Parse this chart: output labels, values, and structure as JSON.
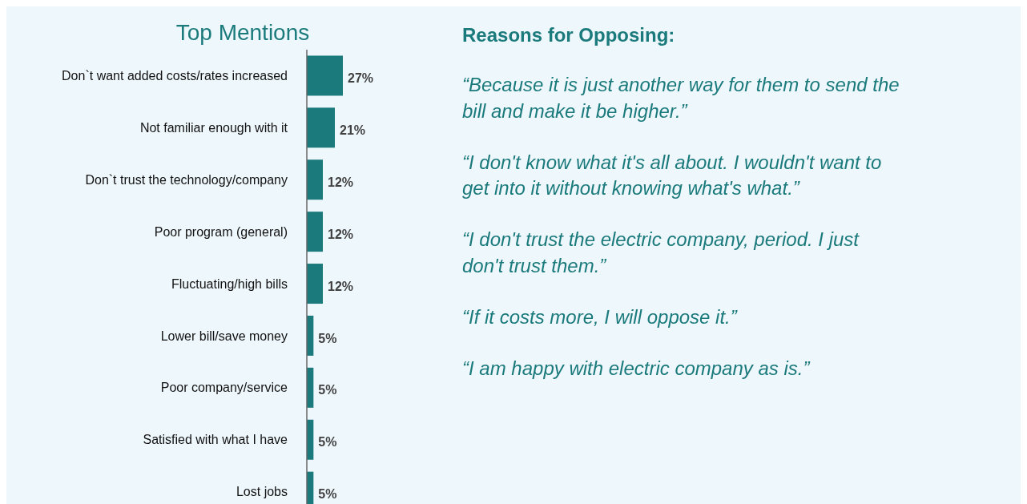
{
  "chart_data": [
    {
      "type": "bar",
      "orientation": "horizontal",
      "title": "Top Mentions",
      "color": "#1b7a7c",
      "categories": [
        "Don`t want added costs/rates increased",
        "Not familiar enough with it",
        "Don`t trust the technology/company",
        "Poor program (general)",
        "Fluctuating/high bills",
        "Lower bill/save money",
        "Poor company/service",
        "Satisfied with what I have",
        "Lost jobs"
      ],
      "values": [
        27,
        21,
        12,
        12,
        12,
        5,
        5,
        5,
        5
      ],
      "value_labels": [
        "27%",
        "21%",
        "12%",
        "12%",
        "12%",
        "5%",
        "5%",
        "5%",
        "5%"
      ],
      "tick_labels": "x"
    },
    {
      "type": "other",
      "title": "Reasons for Opposing:",
      "annotations": [
        "“Because it is just another way for them to send the bill and make it be higher.”",
        "“I don't know what it's all about. I wouldn't want to get into it without knowing what's what.”",
        "“I don't trust the electric company, period. I just don't trust them.”",
        "“If it costs more, I will oppose it.”",
        "“I am happy with electric company as is.”"
      ]
    }
  ]
}
